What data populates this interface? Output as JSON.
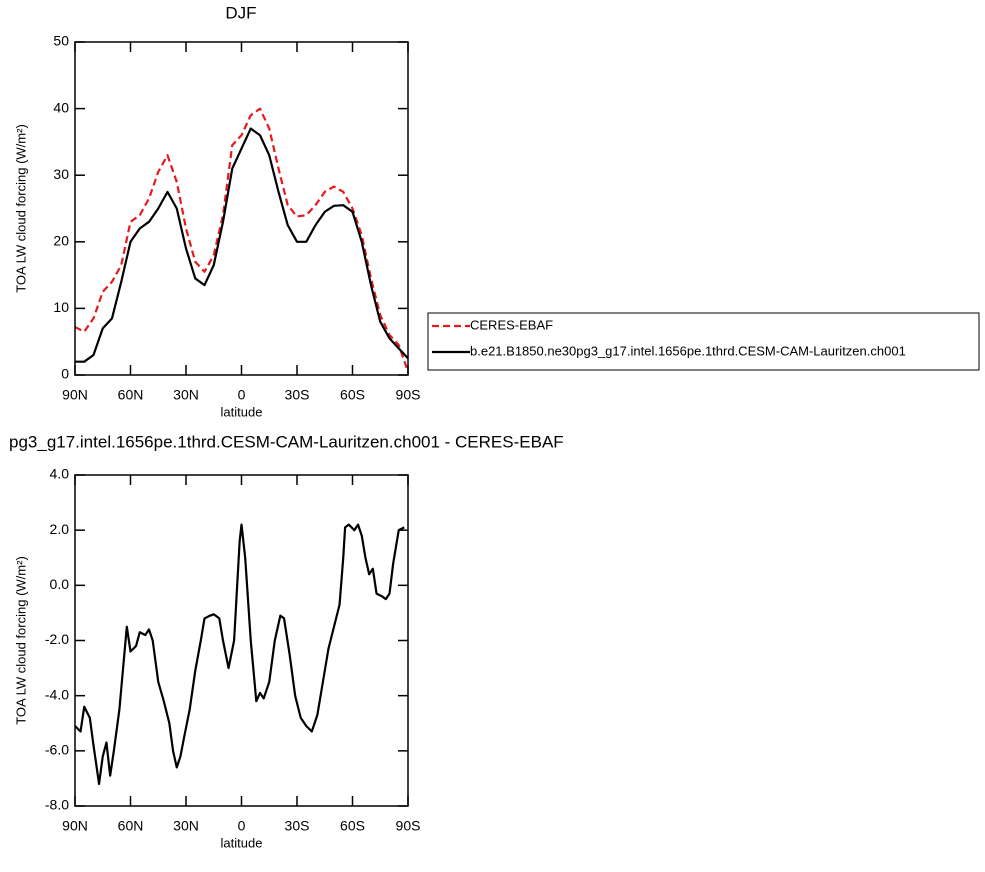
{
  "chart_data": [
    {
      "type": "line",
      "title": "DJF",
      "xlabel": "latitude",
      "ylabel": "TOA LW cloud forcing (W/m²)",
      "legend": "right",
      "x": [
        90,
        85,
        80,
        75,
        70,
        65,
        60,
        55,
        50,
        45,
        40,
        35,
        30,
        25,
        20,
        15,
        10,
        5,
        0,
        -5,
        -10,
        -15,
        -20,
        -25,
        -30,
        -35,
        -40,
        -45,
        -50,
        -55,
        -60,
        -65,
        -70,
        -75,
        -80,
        -85,
        -90
      ],
      "series": [
        {
          "name": "CERES-EBAF",
          "color": "#e41a1c",
          "dashed": true,
          "values": [
            7.2,
            6.5,
            8.5,
            12.5,
            14,
            16.5,
            23,
            24,
            26.5,
            30.5,
            33,
            29,
            22,
            17,
            15.5,
            18,
            24,
            34.5,
            36,
            39,
            40,
            37,
            31,
            25.5,
            23.8,
            24,
            25.5,
            27.5,
            28.3,
            27.5,
            25,
            21,
            14.5,
            9,
            6,
            4.5,
            0.5
          ]
        },
        {
          "name": "b.e21.B1850.ne30pg3_g17.intel.1656pe.1thrd.CESM-CAM-Lauritzen.ch001",
          "color": "#000000",
          "dashed": false,
          "values": [
            2,
            2,
            3,
            7,
            8.5,
            14,
            20,
            22,
            23,
            25,
            27.5,
            25,
            19,
            14.5,
            13.5,
            16.5,
            23,
            31,
            34,
            37,
            36,
            33,
            27.5,
            22.5,
            20,
            20,
            22.5,
            24.5,
            25.4,
            25.5,
            24.5,
            20,
            13.5,
            8,
            5.5,
            4,
            2.5
          ]
        }
      ],
      "xlim": [
        90,
        -90
      ],
      "xticks": [
        {
          "value": 90,
          "label": "90N"
        },
        {
          "value": 60,
          "label": "60N"
        },
        {
          "value": 30,
          "label": "30N"
        },
        0,
        {
          "value": -30,
          "label": "30S"
        },
        {
          "value": -60,
          "label": "60S"
        },
        {
          "value": -90,
          "label": "90S"
        }
      ],
      "ylim": [
        0,
        50
      ],
      "yticks": [
        0,
        10,
        20,
        30,
        40,
        50
      ]
    },
    {
      "type": "line",
      "title": "pg3_g17.intel.1656pe.1thrd.CESM-CAM-Lauritzen.ch001 - CERES-EBAF",
      "xlabel": "latitude",
      "ylabel": "TOA LW cloud forcing (W/m²)",
      "x": [
        90,
        87,
        85,
        82,
        80,
        77,
        75,
        73,
        71,
        69,
        66,
        64,
        62,
        60,
        57,
        55,
        52,
        50,
        48,
        45,
        42,
        39,
        37,
        35,
        33,
        31,
        28,
        25,
        22,
        20,
        17,
        15,
        12,
        10,
        7,
        4,
        1,
        0,
        -2,
        -5,
        -8,
        -10,
        -12,
        -15,
        -18,
        -21,
        -23,
        -26,
        -29,
        -32,
        -35,
        -38,
        -41,
        -44,
        -47,
        -50,
        -53,
        -55,
        -56,
        -58,
        -61,
        -63,
        -65,
        -67,
        -69,
        -71,
        -73,
        -76,
        -78,
        -80,
        -82,
        -85,
        -88
      ],
      "series": [
        {
          "color": "#000000",
          "dashed": false,
          "values": [
            -5.1,
            -5.3,
            -4.4,
            -4.8,
            -5.8,
            -7.2,
            -6.2,
            -5.7,
            -6.9,
            -6.0,
            -4.5,
            -3.0,
            -1.5,
            -2.4,
            -2.2,
            -1.7,
            -1.8,
            -1.6,
            -2.0,
            -3.5,
            -4.2,
            -5.0,
            -6.0,
            -6.6,
            -6.2,
            -5.5,
            -4.5,
            -3.1,
            -2.0,
            -1.2,
            -1.1,
            -1.05,
            -1.2,
            -2.0,
            -3.0,
            -2.0,
            1.6,
            2.2,
            1.0,
            -2.0,
            -4.2,
            -3.9,
            -4.1,
            -3.5,
            -2.0,
            -1.1,
            -1.2,
            -2.5,
            -4.0,
            -4.8,
            -5.1,
            -5.3,
            -4.7,
            -3.5,
            -2.3,
            -1.5,
            -0.7,
            1.0,
            2.1,
            2.2,
            2.0,
            2.2,
            1.8,
            1.0,
            0.4,
            0.6,
            -0.3,
            -0.4,
            -0.5,
            -0.3,
            0.8,
            2.0,
            2.1
          ]
        }
      ],
      "xlim": [
        90,
        -90
      ],
      "xticks": [
        {
          "value": 90,
          "label": "90N"
        },
        {
          "value": 60,
          "label": "60N"
        },
        {
          "value": 30,
          "label": "30N"
        },
        0,
        {
          "value": -30,
          "label": "30S"
        },
        {
          "value": -60,
          "label": "60S"
        },
        {
          "value": -90,
          "label": "90S"
        }
      ],
      "ylim": [
        -8,
        4
      ],
      "yticks": [
        {
          "value": -8,
          "label": "-8.0"
        },
        {
          "value": -6,
          "label": "-6.0"
        },
        {
          "value": -4,
          "label": "-4.0"
        },
        {
          "value": -2,
          "label": "-2.0"
        },
        {
          "value": 0,
          "label": "0.0"
        },
        {
          "value": 2,
          "label": "2.0"
        },
        {
          "value": 4,
          "label": "4.0"
        }
      ]
    }
  ]
}
